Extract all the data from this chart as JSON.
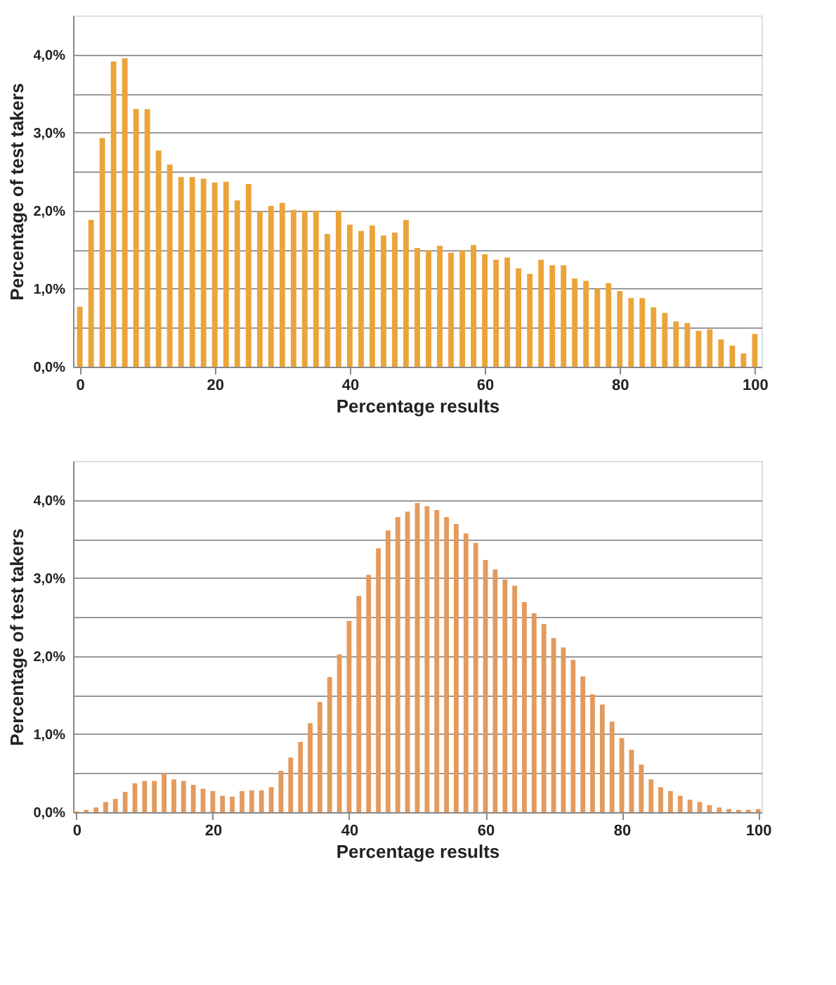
{
  "chart_data": [
    {
      "type": "bar",
      "xlabel": "Percentage results",
      "ylabel": "Percentage of test takers",
      "color": "#eba43a",
      "x": [
        0,
        1.67,
        3.33,
        5,
        6.67,
        8.33,
        10,
        11.67,
        13.33,
        15,
        16.67,
        18.33,
        20,
        21.67,
        23.33,
        25,
        26.67,
        28.33,
        30,
        31.67,
        33.33,
        35,
        36.67,
        38.33,
        40,
        41.67,
        43.33,
        45,
        46.67,
        48.33,
        50,
        51.67,
        53.33,
        55,
        56.67,
        58.33,
        60,
        61.67,
        63.33,
        65,
        66.67,
        68.33,
        70,
        71.67,
        73.33,
        75,
        76.67,
        78.33,
        80,
        81.67,
        83.33,
        85,
        86.67,
        88.33,
        90,
        91.67,
        93.33,
        95,
        96.67,
        98.33,
        100
      ],
      "values": [
        0.77,
        1.88,
        2.93,
        3.91,
        3.95,
        3.3,
        3.3,
        2.77,
        2.59,
        2.43,
        2.43,
        2.41,
        2.36,
        2.37,
        2.13,
        2.34,
        1.99,
        2.06,
        2.1,
        2.01,
        2.0,
        2.0,
        1.7,
        2.0,
        1.82,
        1.74,
        1.81,
        1.68,
        1.72,
        1.88,
        1.52,
        1.49,
        1.55,
        1.46,
        1.49,
        1.56,
        1.44,
        1.37,
        1.4,
        1.26,
        1.19,
        1.37,
        1.3,
        1.3,
        1.13,
        1.1,
        1.0,
        1.07,
        0.97,
        0.88,
        0.88,
        0.76,
        0.69,
        0.58,
        0.56,
        0.46,
        0.48,
        0.35,
        0.27,
        0.17,
        0.42
      ],
      "xlim": [
        -1,
        101
      ],
      "xticks": [
        0,
        20,
        40,
        60,
        80,
        100
      ],
      "ylim": [
        0,
        4.5
      ],
      "yticks": [
        {
          "value": 0,
          "label": "0,0%"
        },
        {
          "value": 0.5,
          "label": null
        },
        {
          "value": 1,
          "label": "1,0%"
        },
        {
          "value": 1.5,
          "label": null
        },
        {
          "value": 2,
          "label": "2,0%"
        },
        {
          "value": 2.5,
          "label": null
        },
        {
          "value": 3,
          "label": "3,0%"
        },
        {
          "value": 3.5,
          "label": null
        },
        {
          "value": 4,
          "label": "4,0%"
        }
      ],
      "grid": "y"
    },
    {
      "type": "bar",
      "xlabel": "Percentage results",
      "ylabel": "Percentage of test takers",
      "color": "#e39a5e",
      "x": [
        0,
        1.43,
        2.86,
        4.29,
        5.71,
        7.14,
        8.57,
        10,
        11.43,
        12.86,
        14.29,
        15.71,
        17.14,
        18.57,
        20,
        21.43,
        22.86,
        24.29,
        25.71,
        27.14,
        28.57,
        30,
        31.43,
        32.86,
        34.29,
        35.71,
        37.14,
        38.57,
        40,
        41.43,
        42.86,
        44.29,
        45.71,
        47.14,
        48.57,
        50,
        51.43,
        52.86,
        54.29,
        55.71,
        57.14,
        58.57,
        60,
        61.43,
        62.86,
        64.29,
        65.71,
        67.14,
        68.57,
        70,
        71.43,
        72.86,
        74.29,
        75.71,
        77.14,
        78.57,
        80,
        81.43,
        82.86,
        84.29,
        85.71,
        87.14,
        88.57,
        90,
        91.43,
        92.86,
        94.29,
        95.71,
        97.14,
        98.57,
        100
      ],
      "values": [
        0.01,
        0.03,
        0.06,
        0.13,
        0.17,
        0.26,
        0.37,
        0.4,
        0.4,
        0.5,
        0.42,
        0.4,
        0.35,
        0.3,
        0.27,
        0.21,
        0.2,
        0.27,
        0.28,
        0.28,
        0.32,
        0.53,
        0.7,
        0.9,
        1.14,
        1.41,
        1.73,
        2.02,
        2.45,
        2.77,
        3.04,
        3.38,
        3.61,
        3.78,
        3.85,
        3.96,
        3.92,
        3.87,
        3.78,
        3.69,
        3.57,
        3.45,
        3.23,
        3.11,
        2.98,
        2.9,
        2.69,
        2.55,
        2.41,
        2.23,
        2.11,
        1.95,
        1.74,
        1.51,
        1.38,
        1.16,
        0.95,
        0.8,
        0.61,
        0.42,
        0.32,
        0.27,
        0.21,
        0.16,
        0.13,
        0.09,
        0.06,
        0.04,
        0.03,
        0.03,
        0.04
      ],
      "xlim": [
        -0.5,
        100.5
      ],
      "xticks": [
        0,
        20,
        40,
        60,
        80,
        100
      ],
      "ylim": [
        0,
        4.5
      ],
      "yticks": [
        {
          "value": 0,
          "label": "0,0%"
        },
        {
          "value": 0.5,
          "label": null
        },
        {
          "value": 1,
          "label": "1,0%"
        },
        {
          "value": 1.5,
          "label": null
        },
        {
          "value": 2,
          "label": "2,0%"
        },
        {
          "value": 2.5,
          "label": null
        },
        {
          "value": 3,
          "label": "3,0%"
        },
        {
          "value": 3.5,
          "label": null
        },
        {
          "value": 4,
          "label": "4,0%"
        }
      ],
      "grid": "y"
    }
  ]
}
